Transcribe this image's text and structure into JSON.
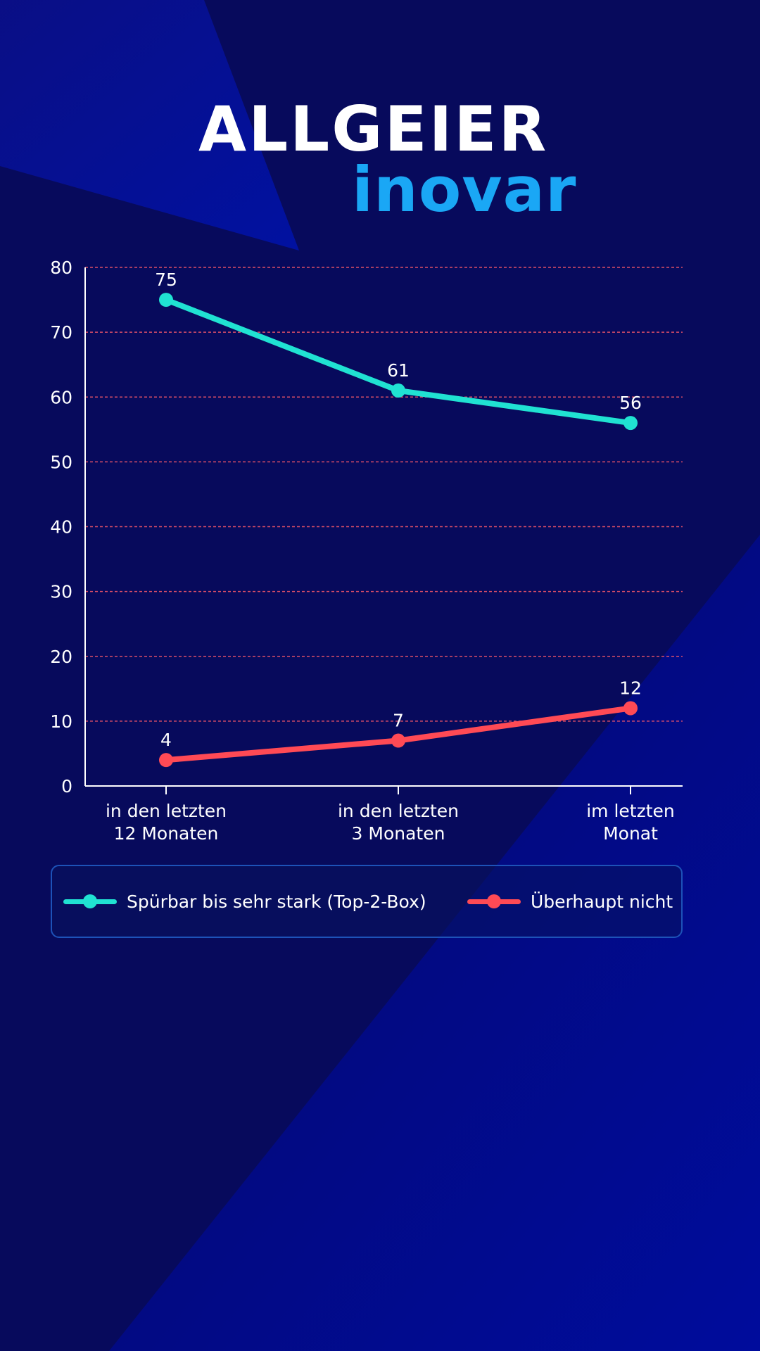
{
  "logo": {
    "line1": "ALLGEIER",
    "line2": "inovar"
  },
  "colors": {
    "background": "#070a5c",
    "series_top": "#20e2d2",
    "series_bottom": "#ff4a55",
    "gridline": "#ff5a6a",
    "axis": "#ffffff",
    "logo_accent": "#1aa7f5"
  },
  "chart_data": {
    "type": "line",
    "categories": [
      [
        "in den letzten",
        "12 Monaten"
      ],
      [
        "in den letzten",
        "3 Monaten"
      ],
      [
        "im letzten",
        "Monat"
      ]
    ],
    "series": [
      {
        "name": "Spürbar bis sehr stark (Top-2-Box)",
        "values": [
          75,
          61,
          56
        ],
        "color": "#20e2d2"
      },
      {
        "name": "Überhaupt nicht",
        "values": [
          4,
          7,
          12
        ],
        "color": "#ff4a55"
      }
    ],
    "ylim": [
      0,
      80
    ],
    "yticks": [
      0,
      10,
      20,
      30,
      40,
      50,
      60,
      70,
      80
    ],
    "grid": true,
    "grid_style": "dashed",
    "legend_position": "bottom",
    "data_labels": true
  },
  "legend": {
    "items": [
      {
        "label": "Spürbar bis sehr stark (Top-2-Box)",
        "color": "#20e2d2"
      },
      {
        "label": "Überhaupt nicht",
        "color": "#ff4a55"
      }
    ]
  }
}
